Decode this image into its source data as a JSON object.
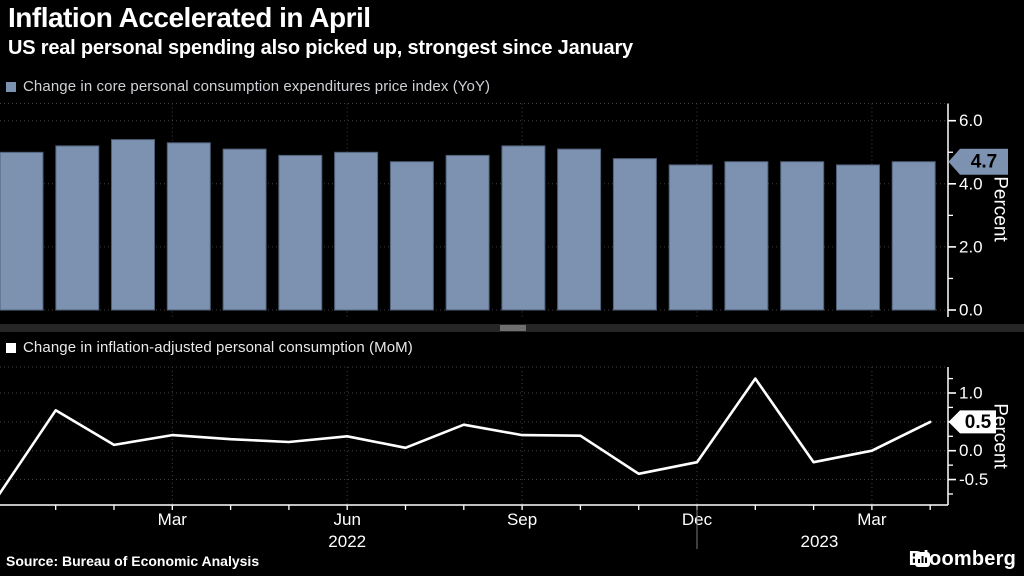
{
  "header": {
    "title": "Inflation Accelerated in April",
    "subtitle": "US real personal spending also picked up, strongest since January"
  },
  "footer": {
    "source": "Source: Bureau of Economic Analysis",
    "brand": "Bloomberg"
  },
  "colors": {
    "background": "#000000",
    "bar": "#7C92B0",
    "bar_edge": "#4E5F78",
    "line": "#FFFFFF",
    "grid": "#414141",
    "axis": "#FFFFFF",
    "tick_text": "#FFFFFF",
    "legend_text": "#CFD2D6",
    "badge_text": "#000000",
    "year_separator": "#7d7d7d"
  },
  "chart_data": [
    {
      "type": "bar",
      "legend": "Change in core personal consumption expenditures price index (YoY)",
      "categories": [
        "Dec 2021",
        "Jan 2022",
        "Feb 2022",
        "Mar 2022",
        "Apr 2022",
        "May 2022",
        "Jun 2022",
        "Jul 2022",
        "Aug 2022",
        "Sep 2022",
        "Oct 2022",
        "Nov 2022",
        "Dec 2022",
        "Jan 2023",
        "Feb 2023",
        "Mar 2023",
        "Apr 2023"
      ],
      "values": [
        5.0,
        5.2,
        5.4,
        5.3,
        5.1,
        4.9,
        5.0,
        4.7,
        4.9,
        5.2,
        5.1,
        4.8,
        4.6,
        4.7,
        4.7,
        4.6,
        4.7
      ],
      "ylabel": "Percent",
      "ylim": [
        -0.2,
        6.55
      ],
      "yticks_labeled": [
        0.0,
        2.0,
        4.0,
        6.0
      ],
      "yticks_minor": [
        1.0,
        3.0,
        5.0
      ],
      "last_value_badge": "4.7",
      "grid": "dotted",
      "legend_position": "top-left"
    },
    {
      "type": "line",
      "legend": "Change in inflation-adjusted personal consumption (MoM)",
      "categories": [
        "Dec 2021",
        "Jan 2022",
        "Feb 2022",
        "Mar 2022",
        "Apr 2022",
        "May 2022",
        "Jun 2022",
        "Jul 2022",
        "Aug 2022",
        "Sep 2022",
        "Oct 2022",
        "Nov 2022",
        "Dec 2022",
        "Jan 2023",
        "Feb 2023",
        "Mar 2023",
        "Apr 2023"
      ],
      "values": [
        -0.8,
        0.7,
        0.1,
        0.27,
        0.2,
        0.15,
        0.25,
        0.05,
        0.45,
        0.27,
        0.26,
        -0.4,
        -0.2,
        1.25,
        -0.2,
        0.0,
        0.5
      ],
      "ylabel": "Percent",
      "ylim": [
        -0.94,
        1.45
      ],
      "yticks_labeled": [
        1.0,
        0.5,
        0.0,
        -0.5
      ],
      "yticks_minor": [
        1.25,
        0.75,
        0.25,
        -0.25,
        -0.75
      ],
      "last_value_badge": "0.5",
      "grid": "dotted",
      "x_tick_labels": [
        {
          "label": "Mar",
          "index": 3
        },
        {
          "label": "Jun",
          "index": 6
        },
        {
          "label": "Sep",
          "index": 9
        },
        {
          "label": "Dec",
          "index": 12
        },
        {
          "label": "Mar",
          "index": 15
        }
      ],
      "year_labels": [
        {
          "label": "2022",
          "index": 6
        },
        {
          "label": "2023",
          "index": 14.1
        }
      ],
      "year_separator_index": 12
    }
  ]
}
